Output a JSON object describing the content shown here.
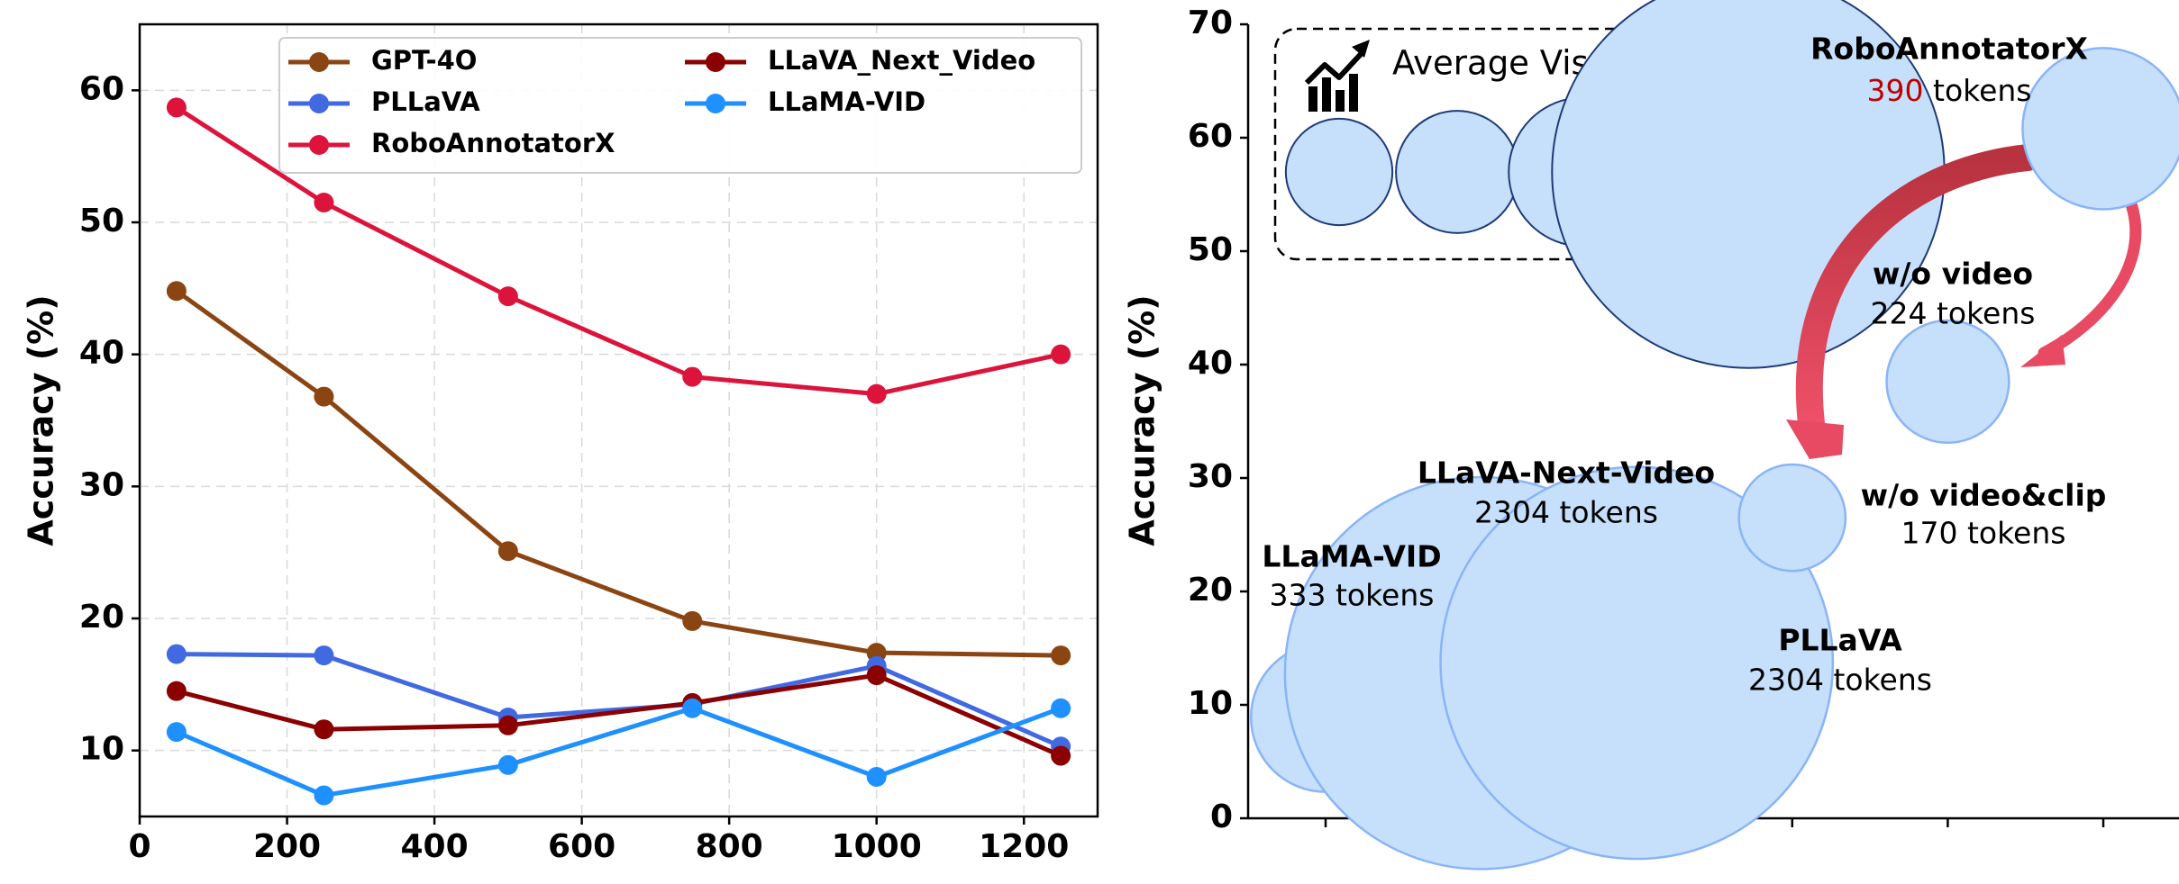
{
  "chart_data": [
    {
      "type": "line",
      "title": "",
      "xlabel": "",
      "ylabel": "Accuracy (%)",
      "xlim": [
        0,
        1300
      ],
      "ylim": [
        5,
        65
      ],
      "x_ticks": [
        "0",
        "200",
        "400",
        "600",
        "800",
        "1000",
        "1200"
      ],
      "y_ticks": [
        "10",
        "20",
        "30",
        "40",
        "50",
        "60"
      ],
      "grid": true,
      "legend_position": "top",
      "x": [
        50,
        250,
        500,
        750,
        1000,
        1250
      ],
      "series": [
        {
          "name": "GPT-4O",
          "color": "#8B4513",
          "values": [
            44.8,
            36.8,
            25.1,
            19.8,
            17.4,
            17.2
          ]
        },
        {
          "name": "PLLaVA",
          "color": "#4169E1",
          "values": [
            17.3,
            17.2,
            12.5,
            13.5,
            16.4,
            10.3
          ]
        },
        {
          "name": "RoboAnnotatorX",
          "color": "#DC143C",
          "values": [
            58.7,
            51.5,
            44.4,
            38.3,
            37.0,
            40.0
          ]
        },
        {
          "name": "LLaVA_Next_Video",
          "color": "#8B0000",
          "values": [
            14.5,
            11.6,
            11.9,
            13.6,
            15.7,
            9.6
          ]
        },
        {
          "name": "LLaMA-VID",
          "color": "#1E90FF",
          "values": [
            11.4,
            6.6,
            8.9,
            13.2,
            8.0,
            13.2
          ]
        }
      ]
    },
    {
      "type": "scatter",
      "title": "",
      "xlabel": "",
      "ylabel": "Accuracy (%)",
      "ylim": [
        0,
        70
      ],
      "y_ticks": [
        "0",
        "10",
        "20",
        "30",
        "40",
        "50",
        "60",
        "70"
      ],
      "x_positions": [
        1,
        2,
        3,
        4,
        5,
        6
      ],
      "grid": false,
      "size_legend_title": "Average Visual Tokens",
      "size_legend_tokens": [
        170,
        224,
        333,
        2304
      ],
      "points": [
        {
          "model": "LLaMA-VID",
          "tokens_text": "333 tokens",
          "x": 1,
          "accuracy": 8.9,
          "tokens": 333
        },
        {
          "model": "LLaVA-Next-Video",
          "tokens_text": "2304 tokens",
          "x": 2,
          "accuracy": 12.8,
          "tokens": 2304
        },
        {
          "model": "PLLaVA",
          "tokens_text": "2304 tokens",
          "x": 3,
          "accuracy": 13.7,
          "tokens": 2304
        },
        {
          "model": "w/o video&clip",
          "tokens_text": "170 tokens",
          "x": 4,
          "accuracy": 26.5,
          "tokens": 170
        },
        {
          "model": "w/o video",
          "tokens_text": "224 tokens",
          "x": 5,
          "accuracy": 38.5,
          "tokens": 224
        },
        {
          "model": "RoboAnnotatorX",
          "tokens_value": "390",
          "tokens_suffix": "tokens",
          "x": 6,
          "accuracy": 60.8,
          "tokens": 390
        }
      ],
      "highlight_color": "#C00000",
      "bubble_fill": "#C6E0FB",
      "bubble_stroke": "#8AB4F8",
      "arrow_color": "#E0405A"
    }
  ]
}
